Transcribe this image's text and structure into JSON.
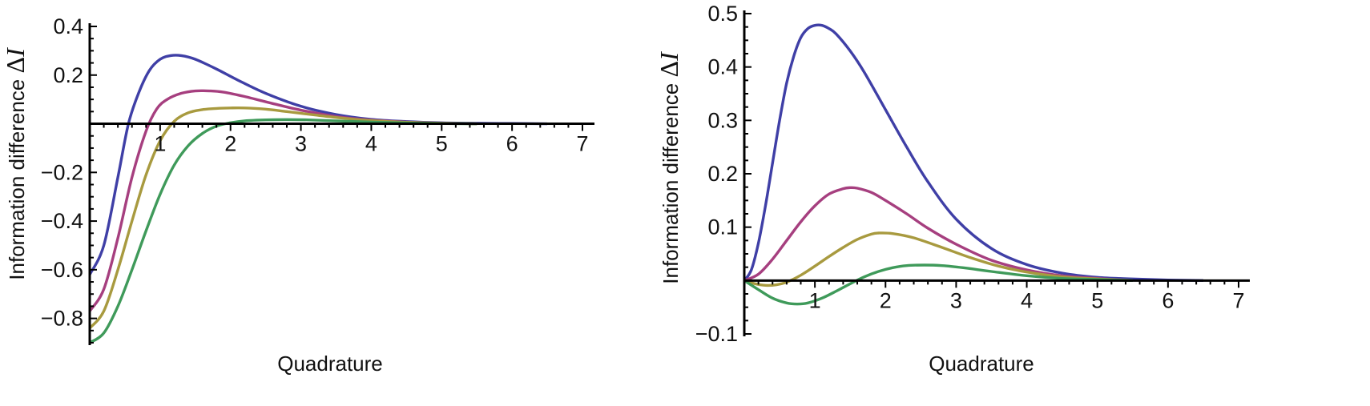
{
  "chart_data": [
    {
      "type": "line",
      "xlabel": "Quadrature",
      "ylabel": {
        "text": "Information difference ",
        "delta": "Δ",
        "symbol": "I"
      },
      "xlim": [
        0,
        7.1
      ],
      "ylim": [
        -0.9,
        0.4
      ],
      "x_ticks": [
        1,
        2,
        3,
        4,
        5,
        6,
        7
      ],
      "y_ticks": [
        0.4,
        0.2,
        -0.2,
        -0.4,
        -0.6,
        -0.8
      ],
      "x_tick_labels": [
        "1",
        "2",
        "3",
        "4",
        "5",
        "6",
        "7"
      ],
      "y_tick_labels": [
        "0.4",
        "0.2",
        "−0.2",
        "−0.4",
        "−0.6",
        "−0.8"
      ],
      "series": [
        {
          "color": "#3f3fa6",
          "x": [
            0,
            0.2,
            0.4,
            0.55,
            0.7,
            0.85,
            1.0,
            1.15,
            1.3,
            1.5,
            1.8,
            2.1,
            2.5,
            3.0,
            3.5,
            4.0,
            4.5,
            5.0,
            5.5,
            6.0,
            6.5
          ],
          "y": [
            -0.62,
            -0.5,
            -0.22,
            0.0,
            0.13,
            0.22,
            0.265,
            0.28,
            0.28,
            0.265,
            0.225,
            0.18,
            0.125,
            0.072,
            0.038,
            0.018,
            0.009,
            0.004,
            0.002,
            0.001,
            0.0
          ]
        },
        {
          "color": "#a63f7f",
          "x": [
            0,
            0.2,
            0.4,
            0.6,
            0.8,
            0.95,
            1.1,
            1.3,
            1.5,
            1.7,
            1.9,
            2.2,
            2.6,
            3.0,
            3.5,
            4.0,
            4.5,
            5.0,
            5.5
          ],
          "y": [
            -0.77,
            -0.68,
            -0.47,
            -0.22,
            -0.03,
            0.06,
            0.1,
            0.125,
            0.135,
            0.135,
            0.13,
            0.112,
            0.083,
            0.056,
            0.03,
            0.015,
            0.007,
            0.003,
            0.0
          ]
        },
        {
          "color": "#a89a3f",
          "x": [
            0,
            0.2,
            0.4,
            0.6,
            0.8,
            1.0,
            1.2,
            1.4,
            1.6,
            1.8,
            2.0,
            2.2,
            2.5,
            2.8,
            3.2,
            3.6,
            4.0,
            4.5,
            5.0,
            5.5
          ],
          "y": [
            -0.84,
            -0.77,
            -0.6,
            -0.4,
            -0.21,
            -0.07,
            0.01,
            0.045,
            0.058,
            0.063,
            0.065,
            0.065,
            0.06,
            0.05,
            0.036,
            0.023,
            0.013,
            0.006,
            0.002,
            0.0
          ]
        },
        {
          "color": "#3f9a5a",
          "x": [
            0,
            0.2,
            0.4,
            0.6,
            0.8,
            1.0,
            1.2,
            1.4,
            1.6,
            1.8,
            2.0,
            2.2,
            2.5,
            2.8,
            3.1,
            3.5,
            4.0,
            4.5,
            5.0,
            5.5
          ],
          "y": [
            -0.9,
            -0.86,
            -0.75,
            -0.6,
            -0.44,
            -0.29,
            -0.17,
            -0.09,
            -0.04,
            -0.01,
            0.004,
            0.012,
            0.016,
            0.017,
            0.016,
            0.012,
            0.007,
            0.003,
            0.001,
            0.0
          ]
        }
      ]
    },
    {
      "type": "line",
      "xlabel": "Quadrature",
      "ylabel": {
        "text": "Information difference ",
        "delta": "Δ",
        "symbol": "I"
      },
      "xlim": [
        0,
        7.1
      ],
      "ylim": [
        -0.1,
        0.5
      ],
      "x_ticks": [
        1,
        2,
        3,
        4,
        5,
        6,
        7
      ],
      "y_ticks": [
        0.5,
        0.4,
        0.3,
        0.2,
        0.1,
        -0.1
      ],
      "x_tick_labels": [
        "1",
        "2",
        "3",
        "4",
        "5",
        "6",
        "7"
      ],
      "y_tick_labels": [
        "0.5",
        "0.4",
        "0.3",
        "0.2",
        "0.1",
        "−0.1"
      ],
      "series": [
        {
          "color": "#3f3fa6",
          "x": [
            0,
            0.1,
            0.2,
            0.3,
            0.4,
            0.5,
            0.6,
            0.7,
            0.8,
            0.9,
            1.0,
            1.1,
            1.2,
            1.3,
            1.5,
            1.7,
            2.0,
            2.3,
            2.6,
            3.0,
            3.5,
            4.0,
            4.5,
            5.0,
            5.5,
            6.0,
            6.5
          ],
          "y": [
            0.0,
            0.02,
            0.07,
            0.14,
            0.22,
            0.3,
            0.37,
            0.42,
            0.455,
            0.472,
            0.478,
            0.478,
            0.472,
            0.462,
            0.43,
            0.39,
            0.32,
            0.25,
            0.185,
            0.115,
            0.06,
            0.03,
            0.014,
            0.006,
            0.003,
            0.001,
            0.0
          ]
        },
        {
          "color": "#a63f7f",
          "x": [
            0,
            0.2,
            0.4,
            0.6,
            0.8,
            1.0,
            1.2,
            1.4,
            1.5,
            1.6,
            1.8,
            2.0,
            2.3,
            2.6,
            3.0,
            3.5,
            4.0,
            4.5,
            5.0,
            5.5
          ],
          "y": [
            0.0,
            0.012,
            0.04,
            0.075,
            0.11,
            0.14,
            0.162,
            0.172,
            0.174,
            0.173,
            0.165,
            0.15,
            0.125,
            0.098,
            0.068,
            0.038,
            0.02,
            0.009,
            0.004,
            0.0
          ]
        },
        {
          "color": "#a89a3f",
          "x": [
            0,
            0.15,
            0.3,
            0.45,
            0.6,
            0.8,
            1.0,
            1.2,
            1.4,
            1.6,
            1.8,
            1.9,
            2.1,
            2.4,
            2.8,
            3.2,
            3.6,
            4.0,
            4.5,
            5.0,
            5.5
          ],
          "y": [
            0.0,
            -0.006,
            -0.009,
            -0.008,
            -0.003,
            0.01,
            0.027,
            0.045,
            0.062,
            0.077,
            0.087,
            0.089,
            0.088,
            0.08,
            0.062,
            0.043,
            0.027,
            0.016,
            0.007,
            0.003,
            0.0
          ]
        },
        {
          "color": "#3f9a5a",
          "x": [
            0,
            0.2,
            0.4,
            0.6,
            0.75,
            0.9,
            1.1,
            1.3,
            1.5,
            1.7,
            1.9,
            2.1,
            2.3,
            2.55,
            2.8,
            3.1,
            3.5,
            4.0,
            4.5,
            5.0,
            5.5
          ],
          "y": [
            0.0,
            -0.017,
            -0.033,
            -0.042,
            -0.044,
            -0.042,
            -0.033,
            -0.02,
            -0.006,
            0.007,
            0.017,
            0.024,
            0.028,
            0.029,
            0.028,
            0.024,
            0.017,
            0.009,
            0.004,
            0.002,
            0.0
          ]
        }
      ]
    }
  ]
}
